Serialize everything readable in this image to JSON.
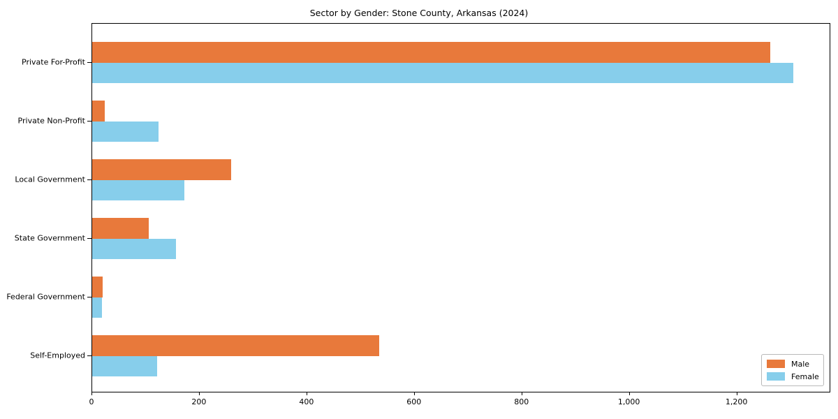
{
  "chart_data": {
    "type": "bar",
    "orientation": "horizontal",
    "title": "Sector by Gender: Stone County, Arkansas (2024)",
    "categories": [
      "Private For-Profit",
      "Private Non-Profit",
      "Local Government",
      "State Government",
      "Federal Government",
      "Self-Employed"
    ],
    "series": [
      {
        "name": "Male",
        "color": "#E8793B",
        "values": [
          1262,
          24,
          258,
          105,
          20,
          534
        ]
      },
      {
        "name": "Female",
        "color": "#87CEEB",
        "values": [
          1305,
          123,
          171,
          156,
          18,
          121
        ]
      }
    ],
    "xlabel": "",
    "ylabel": "",
    "xlim": [
      0,
      1372
    ],
    "x_ticks": [
      {
        "value": 0,
        "label": "0"
      },
      {
        "value": 200,
        "label": "200"
      },
      {
        "value": 400,
        "label": "400"
      },
      {
        "value": 600,
        "label": "600"
      },
      {
        "value": 800,
        "label": "800"
      },
      {
        "value": 1000,
        "label": "1,000"
      },
      {
        "value": 1200,
        "label": "1,200"
      }
    ],
    "grid": false,
    "legend": {
      "position": "lower right",
      "entries": [
        "Male",
        "Female"
      ]
    },
    "colors": {
      "male": "#E8793B",
      "female": "#87CEEB",
      "axis": "#000000",
      "legend_border": "#b9b9b9",
      "background": "#ffffff"
    }
  }
}
